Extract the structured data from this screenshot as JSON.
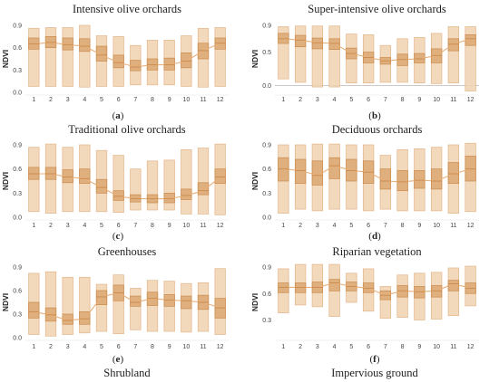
{
  "colors": {
    "box_fill": "#f0d2b0",
    "box_stroke": "#e3b68a",
    "iqr_fill": "#d8a068",
    "iqr_stroke": "#c98a4d",
    "median_line": "#e8b07a",
    "zero_line": "#b9b9b9",
    "axis": "#999999",
    "text": "#222222"
  },
  "months": [
    "1",
    "2",
    "3",
    "4",
    "5",
    "6",
    "7",
    "8",
    "9",
    "10",
    "11",
    "12"
  ],
  "footer_titles": [
    "Shrubland",
    "Impervious ground"
  ],
  "chart_data": [
    {
      "type": "box",
      "title": "Intensive olive orchards",
      "label": "(a)",
      "ylabel": "NDVI",
      "ylim": [
        0.0,
        0.9
      ],
      "yticks": [
        "0.9",
        "0.6",
        "0.3",
        "0.0"
      ],
      "categories": [
        "1",
        "2",
        "3",
        "4",
        "5",
        "6",
        "7",
        "8",
        "9",
        "10",
        "11",
        "12"
      ],
      "min": [
        0.08,
        0.08,
        0.08,
        0.07,
        0.08,
        0.08,
        0.1,
        0.1,
        0.1,
        0.08,
        0.07,
        0.08
      ],
      "q1": [
        0.58,
        0.6,
        0.57,
        0.55,
        0.42,
        0.33,
        0.29,
        0.3,
        0.3,
        0.33,
        0.45,
        0.58
      ],
      "median": [
        0.65,
        0.67,
        0.64,
        0.62,
        0.5,
        0.4,
        0.34,
        0.37,
        0.37,
        0.42,
        0.56,
        0.66
      ],
      "q3": [
        0.73,
        0.75,
        0.73,
        0.72,
        0.62,
        0.5,
        0.43,
        0.45,
        0.46,
        0.53,
        0.66,
        0.73
      ],
      "max": [
        0.86,
        0.87,
        0.87,
        0.9,
        0.76,
        0.75,
        0.63,
        0.7,
        0.7,
        0.76,
        0.86,
        0.87
      ]
    },
    {
      "type": "box",
      "title": "Super-intensive olive orchards",
      "label": "(b)",
      "ylabel": "NDVI",
      "ylim": [
        -0.1,
        0.9
      ],
      "yticks": [
        "0.9",
        "0.5",
        "0.0"
      ],
      "zero_line": true,
      "categories": [
        "1",
        "2",
        "3",
        "4",
        "5",
        "6",
        "7",
        "8",
        "9",
        "10",
        "11",
        "12"
      ],
      "min": [
        0.1,
        0.05,
        -0.02,
        -0.02,
        0.04,
        0.04,
        0.05,
        0.05,
        0.04,
        0.03,
        0.04,
        -0.08
      ],
      "q1": [
        0.63,
        0.58,
        0.55,
        0.54,
        0.4,
        0.34,
        0.32,
        0.3,
        0.34,
        0.34,
        0.52,
        0.6
      ],
      "median": [
        0.7,
        0.68,
        0.64,
        0.63,
        0.48,
        0.42,
        0.37,
        0.39,
        0.4,
        0.45,
        0.62,
        0.7
      ],
      "q3": [
        0.78,
        0.75,
        0.71,
        0.7,
        0.56,
        0.5,
        0.42,
        0.47,
        0.48,
        0.55,
        0.7,
        0.76
      ],
      "max": [
        0.88,
        0.89,
        0.89,
        0.89,
        0.77,
        0.76,
        0.6,
        0.7,
        0.72,
        0.78,
        0.88,
        0.88
      ]
    },
    {
      "type": "box",
      "title": "Traditional olive orchards",
      "label": "(c)",
      "ylabel": "NDVI",
      "ylim": [
        0.0,
        0.9
      ],
      "yticks": [
        "0.9",
        "0.6",
        "0.3",
        "0.0"
      ],
      "categories": [
        "1",
        "2",
        "3",
        "4",
        "5",
        "6",
        "7",
        "8",
        "9",
        "10",
        "11",
        "12"
      ],
      "min": [
        0.07,
        0.05,
        0.07,
        0.07,
        0.07,
        0.06,
        0.09,
        0.09,
        0.09,
        0.04,
        0.04,
        0.03
      ],
      "q1": [
        0.47,
        0.47,
        0.43,
        0.42,
        0.3,
        0.21,
        0.19,
        0.18,
        0.18,
        0.22,
        0.28,
        0.42
      ],
      "median": [
        0.54,
        0.54,
        0.5,
        0.48,
        0.37,
        0.26,
        0.23,
        0.23,
        0.23,
        0.27,
        0.33,
        0.5
      ],
      "q3": [
        0.62,
        0.62,
        0.59,
        0.6,
        0.47,
        0.33,
        0.28,
        0.28,
        0.3,
        0.35,
        0.43,
        0.6
      ],
      "max": [
        0.87,
        0.91,
        0.87,
        0.9,
        0.83,
        0.77,
        0.6,
        0.7,
        0.71,
        0.84,
        0.86,
        0.91
      ]
    },
    {
      "type": "box",
      "title": "Deciduous orchards",
      "label": "(d)",
      "ylabel": "NDVI",
      "ylim": [
        0.0,
        0.9
      ],
      "yticks": [
        "0.9",
        "0.6",
        "0.3",
        "0.0"
      ],
      "categories": [
        "1",
        "2",
        "3",
        "4",
        "5",
        "6",
        "7",
        "8",
        "9",
        "10",
        "11",
        "12"
      ],
      "min": [
        0.05,
        0.1,
        0.08,
        0.1,
        0.1,
        0.08,
        0.1,
        0.08,
        0.08,
        0.08,
        0.05,
        0.07
      ],
      "q1": [
        0.45,
        0.42,
        0.4,
        0.48,
        0.45,
        0.42,
        0.35,
        0.33,
        0.36,
        0.35,
        0.42,
        0.45
      ],
      "median": [
        0.6,
        0.58,
        0.52,
        0.64,
        0.58,
        0.56,
        0.45,
        0.44,
        0.46,
        0.45,
        0.54,
        0.6
      ],
      "q3": [
        0.74,
        0.72,
        0.7,
        0.74,
        0.72,
        0.7,
        0.6,
        0.58,
        0.58,
        0.6,
        0.68,
        0.76
      ],
      "max": [
        0.9,
        0.9,
        0.91,
        0.91,
        0.9,
        0.9,
        0.77,
        0.84,
        0.85,
        0.87,
        0.9,
        0.92
      ]
    },
    {
      "type": "box",
      "title": "Greenhouses",
      "label": "(e)",
      "ylabel": "NDVI",
      "ylim": [
        0.0,
        0.9
      ],
      "yticks": [
        "0.9",
        "0.6",
        "0.3",
        "0.0"
      ],
      "categories": [
        "1",
        "2",
        "3",
        "4",
        "5",
        "6",
        "7",
        "8",
        "9",
        "10",
        "11",
        "12"
      ],
      "min": [
        0.04,
        0.02,
        0.04,
        0.06,
        0.08,
        0.05,
        0.1,
        0.08,
        0.08,
        0.07,
        0.08,
        0.04
      ],
      "q1": [
        0.25,
        0.21,
        0.17,
        0.17,
        0.42,
        0.47,
        0.4,
        0.41,
        0.4,
        0.37,
        0.36,
        0.25
      ],
      "median": [
        0.33,
        0.29,
        0.22,
        0.24,
        0.52,
        0.57,
        0.45,
        0.5,
        0.48,
        0.47,
        0.45,
        0.38
      ],
      "q3": [
        0.45,
        0.38,
        0.3,
        0.33,
        0.6,
        0.67,
        0.53,
        0.58,
        0.55,
        0.53,
        0.54,
        0.5
      ],
      "max": [
        0.82,
        0.84,
        0.77,
        0.77,
        0.68,
        0.8,
        0.63,
        0.73,
        0.72,
        0.69,
        0.7,
        0.88
      ]
    },
    {
      "type": "box",
      "title": "Riparian vegetation",
      "label": "(f)",
      "ylabel": "NDVI",
      "ylim": [
        0.1,
        0.9
      ],
      "yticks": [
        "0.9",
        "0.6",
        "0.3"
      ],
      "categories": [
        "1",
        "2",
        "3",
        "4",
        "5",
        "6",
        "7",
        "8",
        "9",
        "10",
        "11",
        "12"
      ],
      "min": [
        0.38,
        0.47,
        0.45,
        0.34,
        0.5,
        0.4,
        0.32,
        0.33,
        0.3,
        0.31,
        0.35,
        0.46
      ],
      "q1": [
        0.61,
        0.61,
        0.61,
        0.63,
        0.63,
        0.61,
        0.53,
        0.56,
        0.55,
        0.56,
        0.63,
        0.6
      ],
      "median": [
        0.67,
        0.67,
        0.67,
        0.72,
        0.68,
        0.66,
        0.58,
        0.63,
        0.62,
        0.63,
        0.71,
        0.66
      ],
      "q3": [
        0.72,
        0.72,
        0.73,
        0.76,
        0.73,
        0.72,
        0.63,
        0.69,
        0.68,
        0.69,
        0.75,
        0.72
      ],
      "max": [
        0.88,
        0.93,
        0.93,
        0.93,
        0.83,
        0.88,
        0.68,
        0.81,
        0.83,
        0.84,
        0.89,
        0.91
      ]
    }
  ]
}
